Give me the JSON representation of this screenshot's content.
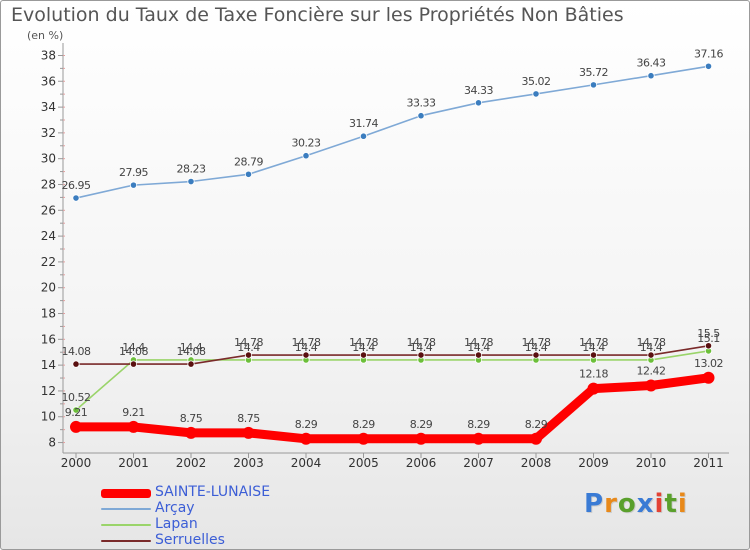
{
  "header": {
    "title": "Evolution du Taux de Taxe Foncière sur les Propriétés Non Bâties",
    "unit": "(en %)"
  },
  "logo": {
    "text": "Proxiti",
    "letters": [
      "P",
      "r",
      "o",
      "x",
      "i",
      "t",
      "i"
    ],
    "colors": [
      "#3a7bd5",
      "#e8891a",
      "#5aa02c",
      "#3a7bd5",
      "#e34234",
      "#5aa02c",
      "#e8891a"
    ]
  },
  "chart_data": {
    "type": "line",
    "title": "Evolution du Taux de Taxe Foncière sur les Propriétés Non Bâties",
    "ylabel": "(en %)",
    "xlabel": "",
    "categories": [
      "2000",
      "2001",
      "2002",
      "2003",
      "2004",
      "2005",
      "2006",
      "2007",
      "2008",
      "2009",
      "2010",
      "2011"
    ],
    "ylim": [
      7.5,
      38.5
    ],
    "yticks": [
      8,
      10,
      12,
      14,
      16,
      18,
      20,
      22,
      24,
      26,
      28,
      30,
      32,
      34,
      36,
      38
    ],
    "grid": false,
    "legend_position": "bottom-left",
    "series": [
      {
        "name": "SAINTE-LUNAISE",
        "color": "#ff0000",
        "marker_color": "#ff0000",
        "values": [
          9.21,
          9.21,
          8.75,
          8.75,
          8.29,
          8.29,
          8.29,
          8.29,
          8.29,
          12.18,
          12.42,
          13.02
        ],
        "labels": [
          "9.21",
          "9.21",
          "8.75",
          "8.75",
          "8.29",
          "8.29",
          "8.29",
          "8.29",
          "8.29",
          "12.18",
          "12.42",
          "13.02"
        ]
      },
      {
        "name": "Arçay",
        "color": "#7fa9d6",
        "marker_color": "#3b7dbf",
        "values": [
          26.95,
          27.95,
          28.23,
          28.79,
          30.23,
          31.74,
          33.33,
          34.33,
          35.02,
          35.72,
          36.43,
          37.16
        ],
        "labels": [
          "26.95",
          "27.95",
          "28.23",
          "28.79",
          "30.23",
          "31.74",
          "33.33",
          "34.33",
          "35.02",
          "35.72",
          "36.43",
          "37.16"
        ]
      },
      {
        "name": "Lapan",
        "color": "#9ad46a",
        "marker_color": "#6cbf3a",
        "values": [
          10.52,
          14.4,
          14.4,
          14.4,
          14.4,
          14.4,
          14.4,
          14.4,
          14.4,
          14.4,
          14.4,
          15.1
        ],
        "labels": [
          "10.52",
          "14.4",
          "14.4",
          "14.4",
          "14.4",
          "14.4",
          "14.4",
          "14.4",
          "14.4",
          "14.4",
          "14.4",
          "15.1"
        ]
      },
      {
        "name": "Serruelles",
        "color": "#7a2a2a",
        "marker_color": "#5a1010",
        "values": [
          14.08,
          14.08,
          14.08,
          14.78,
          14.78,
          14.78,
          14.78,
          14.78,
          14.78,
          14.78,
          14.78,
          15.5
        ],
        "labels": [
          "14.08",
          "14.08",
          "14.08",
          "14.78",
          "14.78",
          "14.78",
          "14.78",
          "14.78",
          "14.78",
          "14.78",
          "14.78",
          "15.5"
        ]
      }
    ]
  }
}
